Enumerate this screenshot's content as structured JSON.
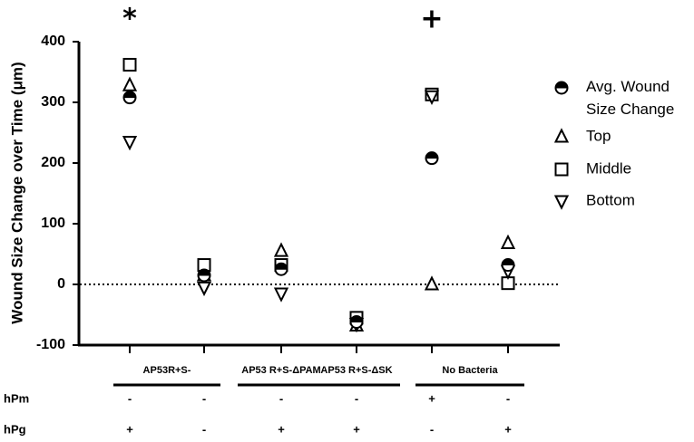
{
  "chart_data": {
    "type": "scatter",
    "ylabel": "Wound Size Change over Time (μm)",
    "ylim": [
      -100,
      400
    ],
    "yticks": [
      -100,
      0,
      100,
      200,
      300,
      400
    ],
    "reference_line": 0,
    "categories": [
      1,
      2,
      3,
      4,
      5,
      6
    ],
    "series": [
      {
        "name": "Avg. Wound Size Change",
        "marker": "half-filled-circle",
        "values": [
          308,
          15,
          25,
          -62,
          208,
          32
        ]
      },
      {
        "name": "Top",
        "marker": "triangle-up",
        "values": [
          328,
          15,
          55,
          -68,
          0,
          68
        ]
      },
      {
        "name": "Middle",
        "marker": "square",
        "values": [
          362,
          32,
          32,
          -55,
          313,
          2
        ]
      },
      {
        "name": "Bottom",
        "marker": "triangle-down",
        "values": [
          235,
          -5,
          -15,
          -65,
          310,
          22
        ]
      }
    ],
    "group_labels": [
      {
        "label": "AP53R+S-",
        "span": [
          1,
          2
        ]
      },
      {
        "label": "AP53 R+S-ΔPAM",
        "span": [
          3,
          3
        ]
      },
      {
        "label": "AP53 R+S-ΔSK",
        "span": [
          4,
          4
        ]
      },
      {
        "label": "No Bacteria",
        "span": [
          5,
          6
        ]
      }
    ],
    "condition_rows": [
      {
        "label": "hPm",
        "values": [
          "-",
          "-",
          "-",
          "-",
          "+",
          "-"
        ]
      },
      {
        "label": "hPg",
        "values": [
          "+",
          "-",
          "+",
          "+",
          "-",
          "+"
        ]
      }
    ],
    "significance": [
      {
        "category": 1,
        "symbol": "*"
      },
      {
        "category": 5,
        "symbol": "+"
      }
    ],
    "legend": {
      "position": "right"
    }
  }
}
